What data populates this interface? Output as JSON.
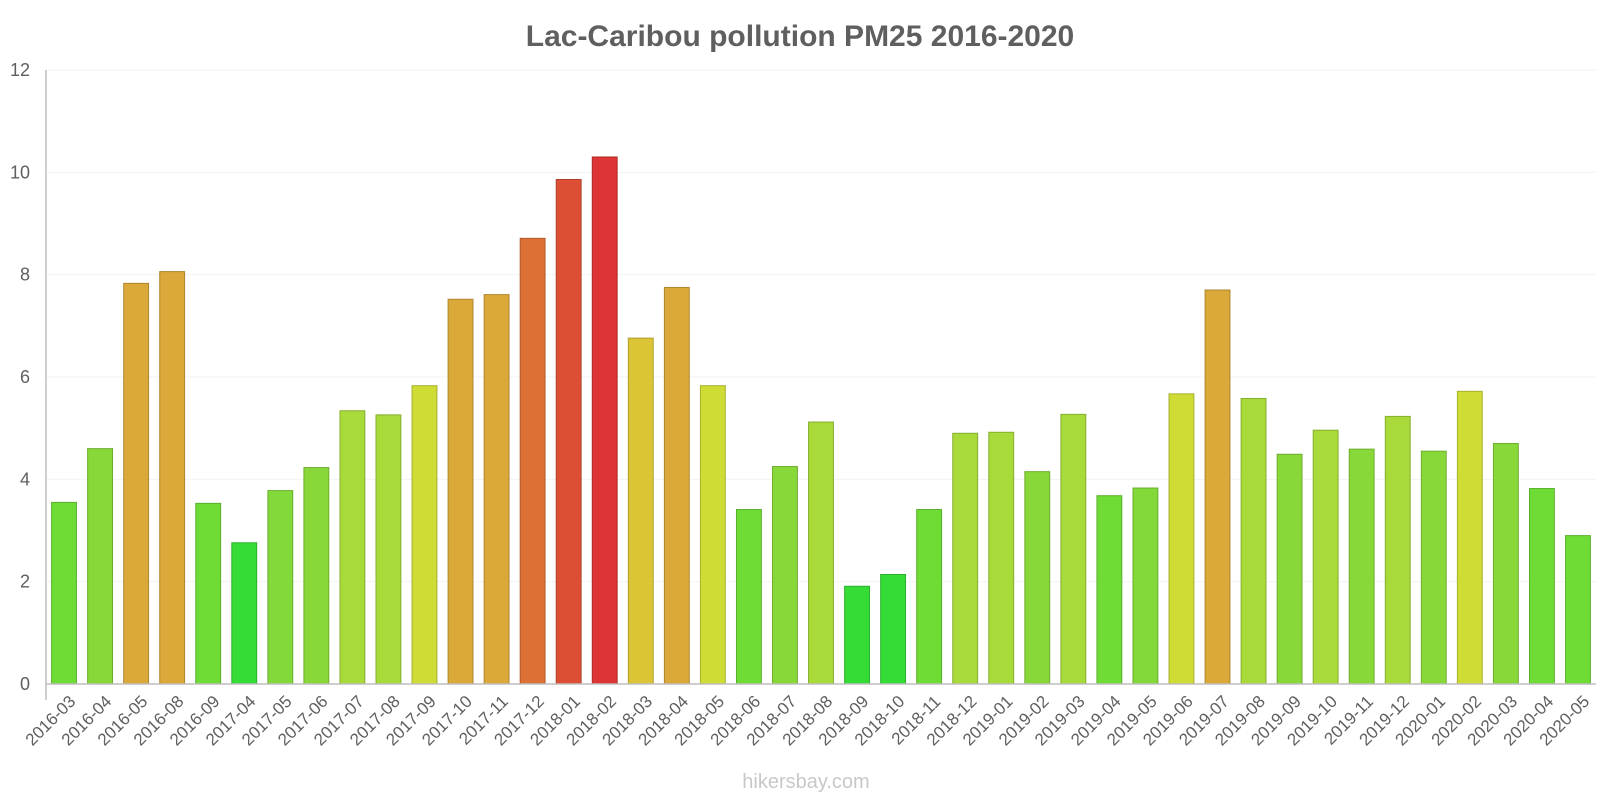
{
  "chart_data": {
    "type": "bar",
    "title": "Lac-Caribou pollution PM25 2016-2020",
    "xlabel": "",
    "ylabel": "",
    "ylim": [
      0,
      12
    ],
    "yticks": [
      0,
      2,
      4,
      6,
      8,
      10,
      12
    ],
    "grid": true,
    "categories": [
      "2016-03",
      "2016-04",
      "2016-05",
      "2016-08",
      "2016-09",
      "2017-04",
      "2017-05",
      "2017-06",
      "2017-07",
      "2017-08",
      "2017-09",
      "2017-10",
      "2017-11",
      "2017-12",
      "2018-01",
      "2018-02",
      "2018-03",
      "2018-04",
      "2018-05",
      "2018-06",
      "2018-07",
      "2018-08",
      "2018-09",
      "2018-10",
      "2018-11",
      "2018-12",
      "2019-01",
      "2019-02",
      "2019-03",
      "2019-04",
      "2019-05",
      "2019-06",
      "2019-07",
      "2019-08",
      "2019-09",
      "2019-10",
      "2019-11",
      "2019-12",
      "2020-01",
      "2020-02",
      "2020-03",
      "2020-04",
      "2020-05"
    ],
    "values": [
      3.55,
      4.6,
      7.83,
      8.06,
      3.53,
      2.76,
      3.78,
      4.23,
      5.34,
      5.26,
      5.83,
      7.52,
      7.61,
      8.71,
      9.86,
      10.3,
      6.76,
      7.75,
      5.83,
      3.41,
      4.25,
      5.12,
      1.91,
      2.14,
      3.41,
      4.9,
      4.92,
      4.15,
      5.27,
      3.68,
      3.83,
      5.67,
      7.7,
      5.58,
      4.49,
      4.96,
      4.59,
      5.23,
      4.55,
      5.72,
      4.7,
      3.82,
      2.9
    ],
    "colors": [
      "#6fdc36",
      "#89d83a",
      "#dba83a",
      "#dba83a",
      "#6fdc36",
      "#36dc36",
      "#83d93a",
      "#89d83a",
      "#a8da3a",
      "#a8da3a",
      "#cfdc36",
      "#dba83a",
      "#dba83a",
      "#dd7035",
      "#dd4f35",
      "#dd3535",
      "#dbc536",
      "#dba83a",
      "#cfdc36",
      "#6fdc36",
      "#89d83a",
      "#a8da3a",
      "#36dc36",
      "#36dc36",
      "#6fdc36",
      "#a8da3a",
      "#a8da3a",
      "#89d83a",
      "#a8da3a",
      "#6fdc36",
      "#83d93a",
      "#cfdc36",
      "#dba83a",
      "#a8da3a",
      "#89d83a",
      "#a8da3a",
      "#89d83a",
      "#a8da3a",
      "#89d83a",
      "#cfdc36",
      "#89d83a",
      "#6fdc36",
      "#6fdc36"
    ]
  },
  "watermark": "hikersbay.com"
}
